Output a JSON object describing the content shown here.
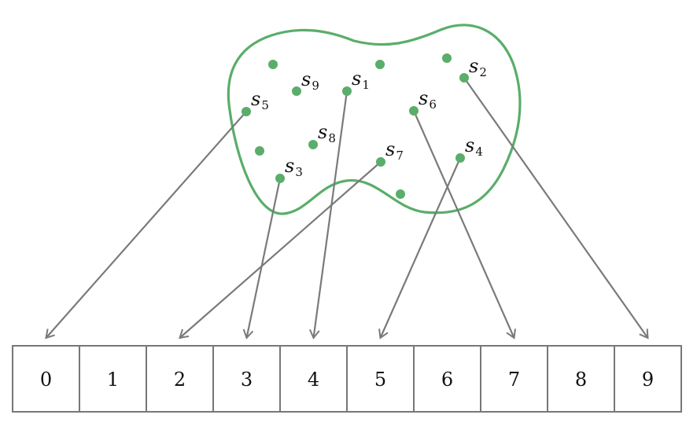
{
  "set_elements": [
    {
      "id": "s1",
      "letter": "s",
      "index": "1",
      "maps_to": 4
    },
    {
      "id": "s2",
      "letter": "s",
      "index": "2",
      "maps_to": 9
    },
    {
      "id": "s3",
      "letter": "s",
      "index": "3",
      "maps_to": 3
    },
    {
      "id": "s4",
      "letter": "s",
      "index": "4",
      "maps_to": 5
    },
    {
      "id": "s5",
      "letter": "s",
      "index": "5",
      "maps_to": 0
    },
    {
      "id": "s6",
      "letter": "s",
      "index": "6",
      "maps_to": 7
    },
    {
      "id": "s7",
      "letter": "s",
      "index": "7",
      "maps_to": 2
    },
    {
      "id": "s8",
      "letter": "s",
      "index": "8",
      "maps_to": null
    },
    {
      "id": "s9",
      "letter": "s",
      "index": "9",
      "maps_to": null
    }
  ],
  "unlabeled_dot_count": 6,
  "table_cells": [
    "0",
    "1",
    "2",
    "3",
    "4",
    "5",
    "6",
    "7",
    "8",
    "9"
  ],
  "colors": {
    "set_outline": "#5aad6a",
    "dots": "#5aad6a",
    "arrows": "#7a7a7a",
    "cell_border": "#777777"
  }
}
